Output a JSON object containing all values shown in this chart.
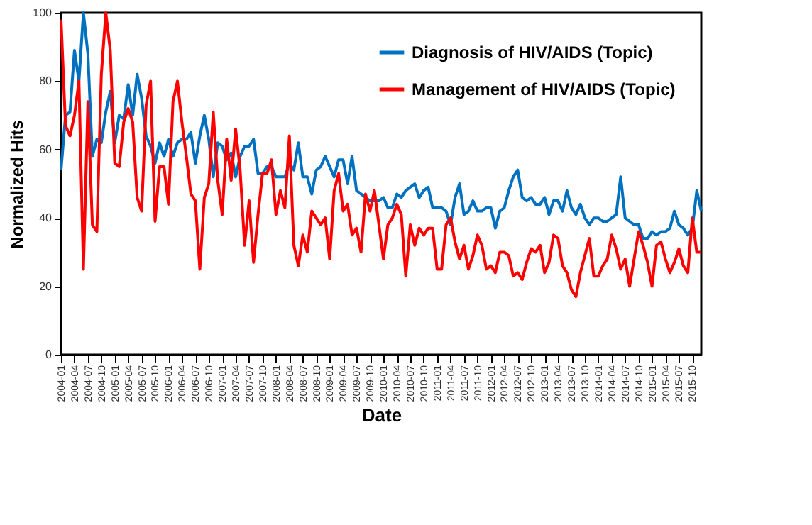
{
  "chart_data": {
    "type": "line",
    "xlabel": "Date",
    "ylabel": "Normalized Hits",
    "categories": [
      "2004-01",
      null,
      null,
      "2004-04",
      null,
      null,
      "2004-07",
      null,
      null,
      "2004-10",
      null,
      null,
      "2005-01",
      null,
      null,
      "2005-04",
      null,
      null,
      "2005-07",
      null,
      null,
      "2005-10",
      null,
      null,
      "2006-01",
      null,
      null,
      "2006-04",
      null,
      null,
      "2006-07",
      null,
      null,
      "2006-10",
      null,
      null,
      "2007-01",
      null,
      null,
      "2007-04",
      null,
      null,
      "2007-07",
      null,
      null,
      "2007-10",
      null,
      null,
      "2008-01",
      null,
      null,
      "2008-04",
      null,
      null,
      "2008-07",
      null,
      null,
      "2008-10",
      null,
      null,
      "2009-01",
      null,
      null,
      "2009-04",
      null,
      null,
      "2009-07",
      null,
      null,
      "2009-10",
      null,
      null,
      "2010-01",
      null,
      null,
      "2010-04",
      null,
      null,
      "2010-07",
      null,
      null,
      "2010-10",
      null,
      null,
      "2011-01",
      null,
      null,
      "2011-04",
      null,
      null,
      "2011-07",
      null,
      null,
      "2011-10",
      null,
      null,
      "2012-01",
      null,
      null,
      "2012-04",
      null,
      null,
      "2012-07",
      null,
      null,
      "2012-10",
      null,
      null,
      "2013-01",
      null,
      null,
      "2013-04",
      null,
      null,
      "2013-07",
      null,
      null,
      "2013-10",
      null,
      null,
      "2014-01",
      null,
      null,
      "2014-04",
      null,
      null,
      "2014-07",
      null,
      null,
      "2014-10",
      null,
      null,
      "2015-01",
      null,
      null,
      "2015-04",
      null,
      null,
      "2015-07",
      null,
      null,
      "2015-10",
      null,
      null
    ],
    "series": [
      {
        "name": "Diagnosis of HIV/AIDS (Topic)",
        "color": "#0070c0",
        "values": [
          54,
          70,
          71,
          89,
          80,
          100,
          88,
          58,
          63,
          62,
          71,
          77,
          62,
          70,
          69,
          79,
          70,
          82,
          75,
          64,
          61,
          56,
          62,
          58,
          63,
          58,
          62,
          63,
          63,
          65,
          56,
          64,
          70,
          63,
          52,
          62,
          61,
          57,
          59,
          52,
          58,
          61,
          61,
          63,
          53,
          53,
          55,
          55,
          52,
          52,
          52,
          56,
          54,
          62,
          52,
          52,
          47,
          54,
          55,
          58,
          55,
          52,
          57,
          57,
          50,
          58,
          48,
          47,
          46,
          45,
          45,
          45,
          46,
          43,
          43,
          47,
          46,
          48,
          49,
          50,
          46,
          48,
          49,
          43,
          43,
          43,
          42,
          38,
          46,
          50,
          41,
          42,
          45,
          42,
          42,
          43,
          43,
          37,
          42,
          43,
          48,
          52,
          54,
          46,
          45,
          46,
          44,
          44,
          46,
          41,
          45,
          45,
          42,
          48,
          43,
          41,
          44,
          40,
          38,
          40,
          40,
          39,
          39,
          40,
          41,
          52,
          40,
          39,
          38,
          38,
          34,
          34,
          36,
          35,
          36,
          36,
          37,
          42,
          38,
          37,
          35,
          37,
          48,
          42
        ]
      },
      {
        "name": "Management of HIV/AIDS (Topic)",
        "color": "#ff0000",
        "values": [
          98,
          67,
          64,
          70,
          80,
          25,
          74,
          38,
          36,
          82,
          100,
          89,
          56,
          55,
          68,
          72,
          68,
          46,
          42,
          73,
          80,
          39,
          55,
          55,
          44,
          74,
          80,
          68,
          58,
          47,
          45,
          25,
          46,
          50,
          71,
          51,
          41,
          63,
          51,
          66,
          54,
          32,
          45,
          27,
          41,
          53,
          53,
          57,
          41,
          48,
          43,
          64,
          32,
          26,
          35,
          30,
          42,
          40,
          38,
          40,
          28,
          48,
          53,
          42,
          44,
          35,
          37,
          30,
          47,
          42,
          48,
          38,
          28,
          38,
          40,
          44,
          41,
          23,
          38,
          32,
          37,
          35,
          37,
          37,
          25,
          25,
          38,
          40,
          33,
          28,
          32,
          25,
          29,
          35,
          32,
          25,
          26,
          24,
          30,
          30,
          29,
          23,
          24,
          22,
          27,
          31,
          30,
          32,
          24,
          27,
          35,
          34,
          26,
          24,
          19,
          17,
          24,
          29,
          34,
          23,
          23,
          26,
          28,
          35,
          31,
          25,
          28,
          20,
          28,
          36,
          32,
          27,
          20,
          32,
          33,
          28,
          24,
          27,
          31,
          26,
          24,
          40,
          30,
          30
        ]
      }
    ],
    "ylim": [
      0,
      100
    ],
    "yticks": [
      0,
      20,
      40,
      60,
      80,
      100
    ],
    "grid": false,
    "legend": "top right",
    "marker": "none",
    "line_style": "solid"
  }
}
